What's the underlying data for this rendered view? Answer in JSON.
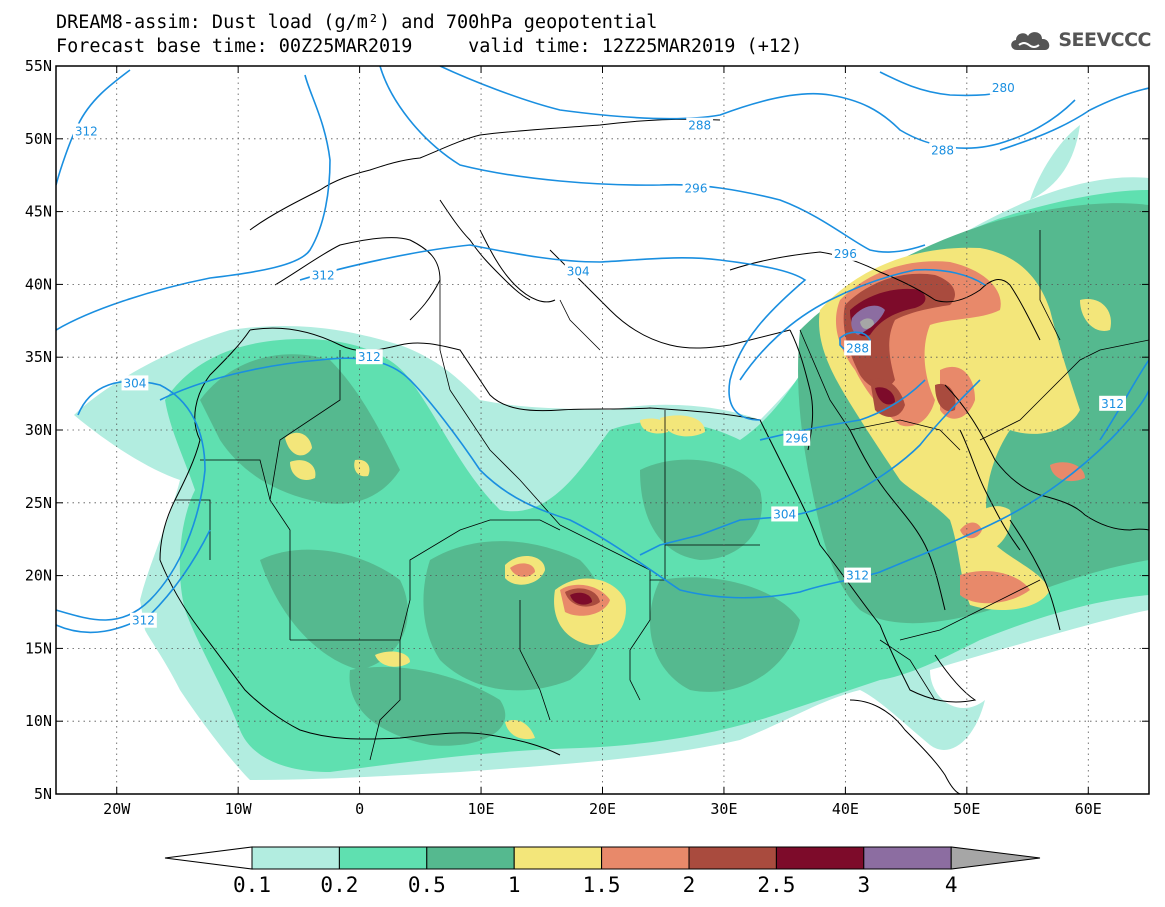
{
  "header": {
    "title_line1": "DREAM8-assim: Dust load (g/m²) and 700hPa geopotential",
    "title_line2": "Forecast base time: 00Z25MAR2019     valid time: 12Z25MAR2019 (+12)",
    "logo_text": "SEEVCCC"
  },
  "map": {
    "lon_range": [
      -25,
      65
    ],
    "lat_range": [
      5,
      55
    ],
    "lon_ticks": [
      {
        "value": -20,
        "label": "20W"
      },
      {
        "value": -10,
        "label": "10W"
      },
      {
        "value": 0,
        "label": "0"
      },
      {
        "value": 10,
        "label": "10E"
      },
      {
        "value": 20,
        "label": "20E"
      },
      {
        "value": 30,
        "label": "30E"
      },
      {
        "value": 40,
        "label": "40E"
      },
      {
        "value": 50,
        "label": "50E"
      },
      {
        "value": 60,
        "label": "60E"
      }
    ],
    "lat_ticks": [
      {
        "value": 55,
        "label": "55N"
      },
      {
        "value": 50,
        "label": "50N"
      },
      {
        "value": 45,
        "label": "45N"
      },
      {
        "value": 40,
        "label": "40N"
      },
      {
        "value": 35,
        "label": "35N"
      },
      {
        "value": 30,
        "label": "30N"
      },
      {
        "value": 25,
        "label": "25N"
      },
      {
        "value": 20,
        "label": "20N"
      },
      {
        "value": 15,
        "label": "15N"
      },
      {
        "value": 10,
        "label": "10N"
      },
      {
        "value": 5,
        "label": "5N"
      }
    ],
    "grid": true,
    "contour_color": "#1a8fe0",
    "contour_labels": [
      {
        "text": "312",
        "lon": -22.5,
        "lat": 50.5
      },
      {
        "text": "280",
        "lon": 53,
        "lat": 53.5
      },
      {
        "text": "288",
        "lon": 28,
        "lat": 50.9
      },
      {
        "text": "288",
        "lon": 48,
        "lat": 49.2
      },
      {
        "text": "296",
        "lon": 27.7,
        "lat": 46.6
      },
      {
        "text": "296",
        "lon": 40,
        "lat": 42.1
      },
      {
        "text": "304",
        "lon": 18,
        "lat": 40.9
      },
      {
        "text": "312",
        "lon": -3,
        "lat": 40.6
      },
      {
        "text": "312",
        "lon": 0.8,
        "lat": 35
      },
      {
        "text": "304",
        "lon": -18.5,
        "lat": 33.2
      },
      {
        "text": "288",
        "lon": 41,
        "lat": 35.6
      },
      {
        "text": "312",
        "lon": 62,
        "lat": 31.8
      },
      {
        "text": "296",
        "lon": 36,
        "lat": 29.4
      },
      {
        "text": "304",
        "lon": 35,
        "lat": 24.2
      },
      {
        "text": "312",
        "lon": 41,
        "lat": 20
      },
      {
        "text": "312",
        "lon": -17.8,
        "lat": 16.9
      }
    ]
  },
  "colorbar": {
    "colors": [
      "#ffffff",
      "#b2ede0",
      "#5fe0b0",
      "#55b98f",
      "#f3e67a",
      "#e8896a",
      "#a94b3e",
      "#7d0b2a",
      "#8c6da1",
      "#a6a6a6"
    ],
    "labels": [
      "0.1",
      "0.2",
      "0.5",
      "1",
      "1.5",
      "2",
      "2.5",
      "3",
      "4"
    ]
  }
}
